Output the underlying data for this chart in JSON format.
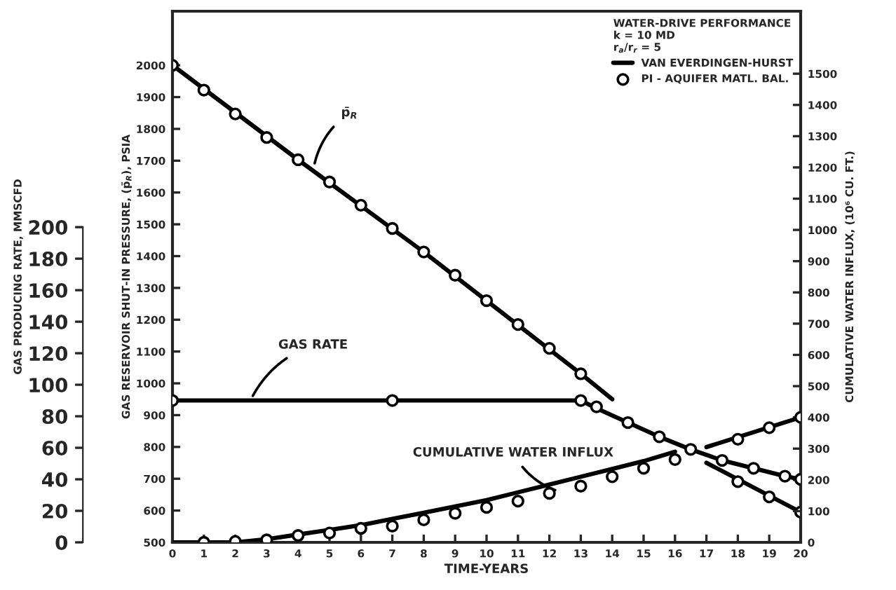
{
  "chart_data": {
    "type": "line",
    "xlabel": "TIME-YEARS",
    "ylabel": "GAS RESERVOIR SHUT-IN PRESSURE, (p̄$_{R}$), PSIA",
    "y2label": "CUMULATIVE WATER INFLUX, (10⁶ CU. FT.)",
    "y3label": "GAS PRODUCING RATE, MMSCFD",
    "legend_title": "WATER-DRIVE PERFORMANCE\nk = 10 MD\nr$_{a}$/r$_{r}$ = 5",
    "legend": "top right",
    "grid": false,
    "xlim": [
      0,
      20
    ],
    "xticks": [
      0,
      1,
      2,
      3,
      4,
      5,
      6,
      7,
      8,
      9,
      10,
      11,
      12,
      13,
      14,
      15,
      16,
      17,
      18,
      19,
      20
    ],
    "ylim": [
      500,
      2170
    ],
    "yticks": [
      500,
      600,
      700,
      800,
      900,
      1000,
      1100,
      1200,
      1300,
      1400,
      1500,
      1600,
      1700,
      1800,
      1900,
      2000
    ],
    "y2lim": [
      0,
      1700
    ],
    "y2ticks": [
      0,
      100,
      200,
      300,
      400,
      500,
      600,
      700,
      800,
      900,
      1000,
      1100,
      1200,
      1300,
      1400,
      1500
    ],
    "y3lim": [
      0,
      337
    ],
    "y3ticks": [
      0,
      20,
      40,
      60,
      80,
      100,
      120,
      140,
      160,
      180,
      200
    ],
    "annotations": [
      {
        "text": "p̄$_{R}$",
        "x": 4.5,
        "y": 1680
      },
      {
        "text": "GAS RATE",
        "x": 2.5,
        "y": 950
      },
      {
        "text": "CUMULATIVE WATER INFLUX",
        "x": 12.3,
        "y": 660
      }
    ],
    "series": [
      {
        "name": "VAN EVERDINGEN-HURST",
        "axis": "y",
        "marker": "none",
        "color": "#000000",
        "x": [
          0,
          4,
          8,
          13,
          14
        ],
        "values": [
          2000,
          1703,
          1413,
          1030,
          950
        ]
      },
      {
        "name": "PI - AQUIFER MATL. BAL.",
        "type": "scatter",
        "axis": "y",
        "marker": "circle",
        "color": "#000000",
        "x": [
          0,
          1,
          2,
          3,
          4,
          5,
          6,
          7,
          8,
          9,
          10,
          11,
          12,
          13
        ],
        "values": [
          2000,
          1922,
          1847,
          1773,
          1703,
          1633,
          1560,
          1487,
          1413,
          1340,
          1260,
          1185,
          1110,
          1030
        ]
      },
      {
        "axis": "y",
        "marker": "none",
        "color": "#000000",
        "x": [
          17,
          20
        ],
        "values": [
          750,
          595
        ]
      },
      {
        "type": "scatter",
        "axis": "y",
        "marker": "circle",
        "color": "#000000",
        "x": [
          18,
          19,
          20
        ],
        "values": [
          691,
          643,
          595
        ]
      },
      {
        "axis": "y3",
        "marker": "none",
        "color": "#000000",
        "x": [
          0,
          13,
          13.5,
          14.5,
          15.5,
          16.5,
          17.5,
          18.5,
          19.5,
          20
        ],
        "values": [
          90,
          90,
          85,
          76,
          67,
          59,
          52,
          47,
          42,
          40
        ]
      },
      {
        "type": "scatter",
        "axis": "y3",
        "marker": "circle",
        "color": "#000000",
        "x": [
          0,
          7,
          13,
          13.5,
          14.5,
          15.5,
          16.5,
          17.5,
          18.5,
          19.5,
          20
        ],
        "values": [
          90,
          90,
          90,
          86,
          76,
          67,
          59,
          52,
          47,
          42,
          40
        ]
      },
      {
        "axis": "y2",
        "marker": "none",
        "color": "#000000",
        "x": [
          0,
          2,
          3,
          4,
          5,
          6,
          7,
          8,
          9,
          10,
          11,
          12,
          13,
          14,
          15,
          16
        ],
        "values": [
          0,
          0,
          10,
          25,
          40,
          55,
          75,
          95,
          115,
          135,
          160,
          185,
          210,
          235,
          260,
          290
        ]
      },
      {
        "type": "scatter",
        "axis": "y2",
        "marker": "circle",
        "color": "#000000",
        "x": [
          1,
          2,
          3,
          4,
          5,
          6,
          7,
          8,
          9,
          10,
          11,
          12,
          13,
          14,
          15,
          16
        ],
        "values": [
          0,
          3,
          8,
          22,
          30,
          45,
          52,
          72,
          93,
          112,
          132,
          157,
          180,
          210,
          237,
          265
        ]
      },
      {
        "axis": "y2",
        "marker": "none",
        "color": "#000000",
        "x": [
          17,
          20
        ],
        "values": [
          305,
          400
        ]
      },
      {
        "type": "scatter",
        "axis": "y2",
        "marker": "circle",
        "color": "#000000",
        "x": [
          18,
          19,
          20
        ],
        "values": [
          330,
          367,
          400
        ]
      }
    ]
  }
}
